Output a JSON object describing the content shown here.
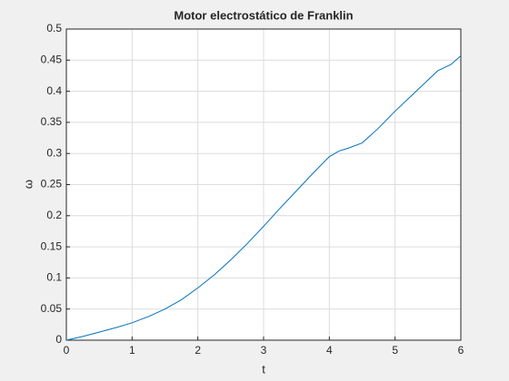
{
  "chart_data": {
    "type": "line",
    "title": "Motor electrostático de Franklin",
    "x_label": "t",
    "y_label": "ω",
    "x": [
      0,
      0.25,
      0.5,
      0.75,
      1,
      1.25,
      1.5,
      1.75,
      2,
      2.25,
      2.5,
      2.75,
      3,
      3.25,
      3.5,
      3.75,
      4,
      4.15,
      4.3,
      4.5,
      4.75,
      5,
      5.25,
      5.5,
      5.65,
      5.85,
      6
    ],
    "series": [
      {
        "name": "ω",
        "color": "#0072bd",
        "values": [
          0,
          0.006,
          0.013,
          0.02,
          0.028,
          0.038,
          0.05,
          0.065,
          0.084,
          0.105,
          0.129,
          0.155,
          0.183,
          0.212,
          0.24,
          0.268,
          0.295,
          0.304,
          0.309,
          0.317,
          0.341,
          0.368,
          0.393,
          0.418,
          0.433,
          0.443,
          0.457
        ]
      }
    ],
    "xlim": [
      0,
      6
    ],
    "ylim": [
      0,
      0.5
    ],
    "xticks": [
      0,
      1,
      2,
      3,
      4,
      5,
      6
    ],
    "yticks": [
      0,
      0.05,
      0.1,
      0.15,
      0.2,
      0.25,
      0.3,
      0.35,
      0.4,
      0.45,
      0.5
    ],
    "grid": true
  }
}
